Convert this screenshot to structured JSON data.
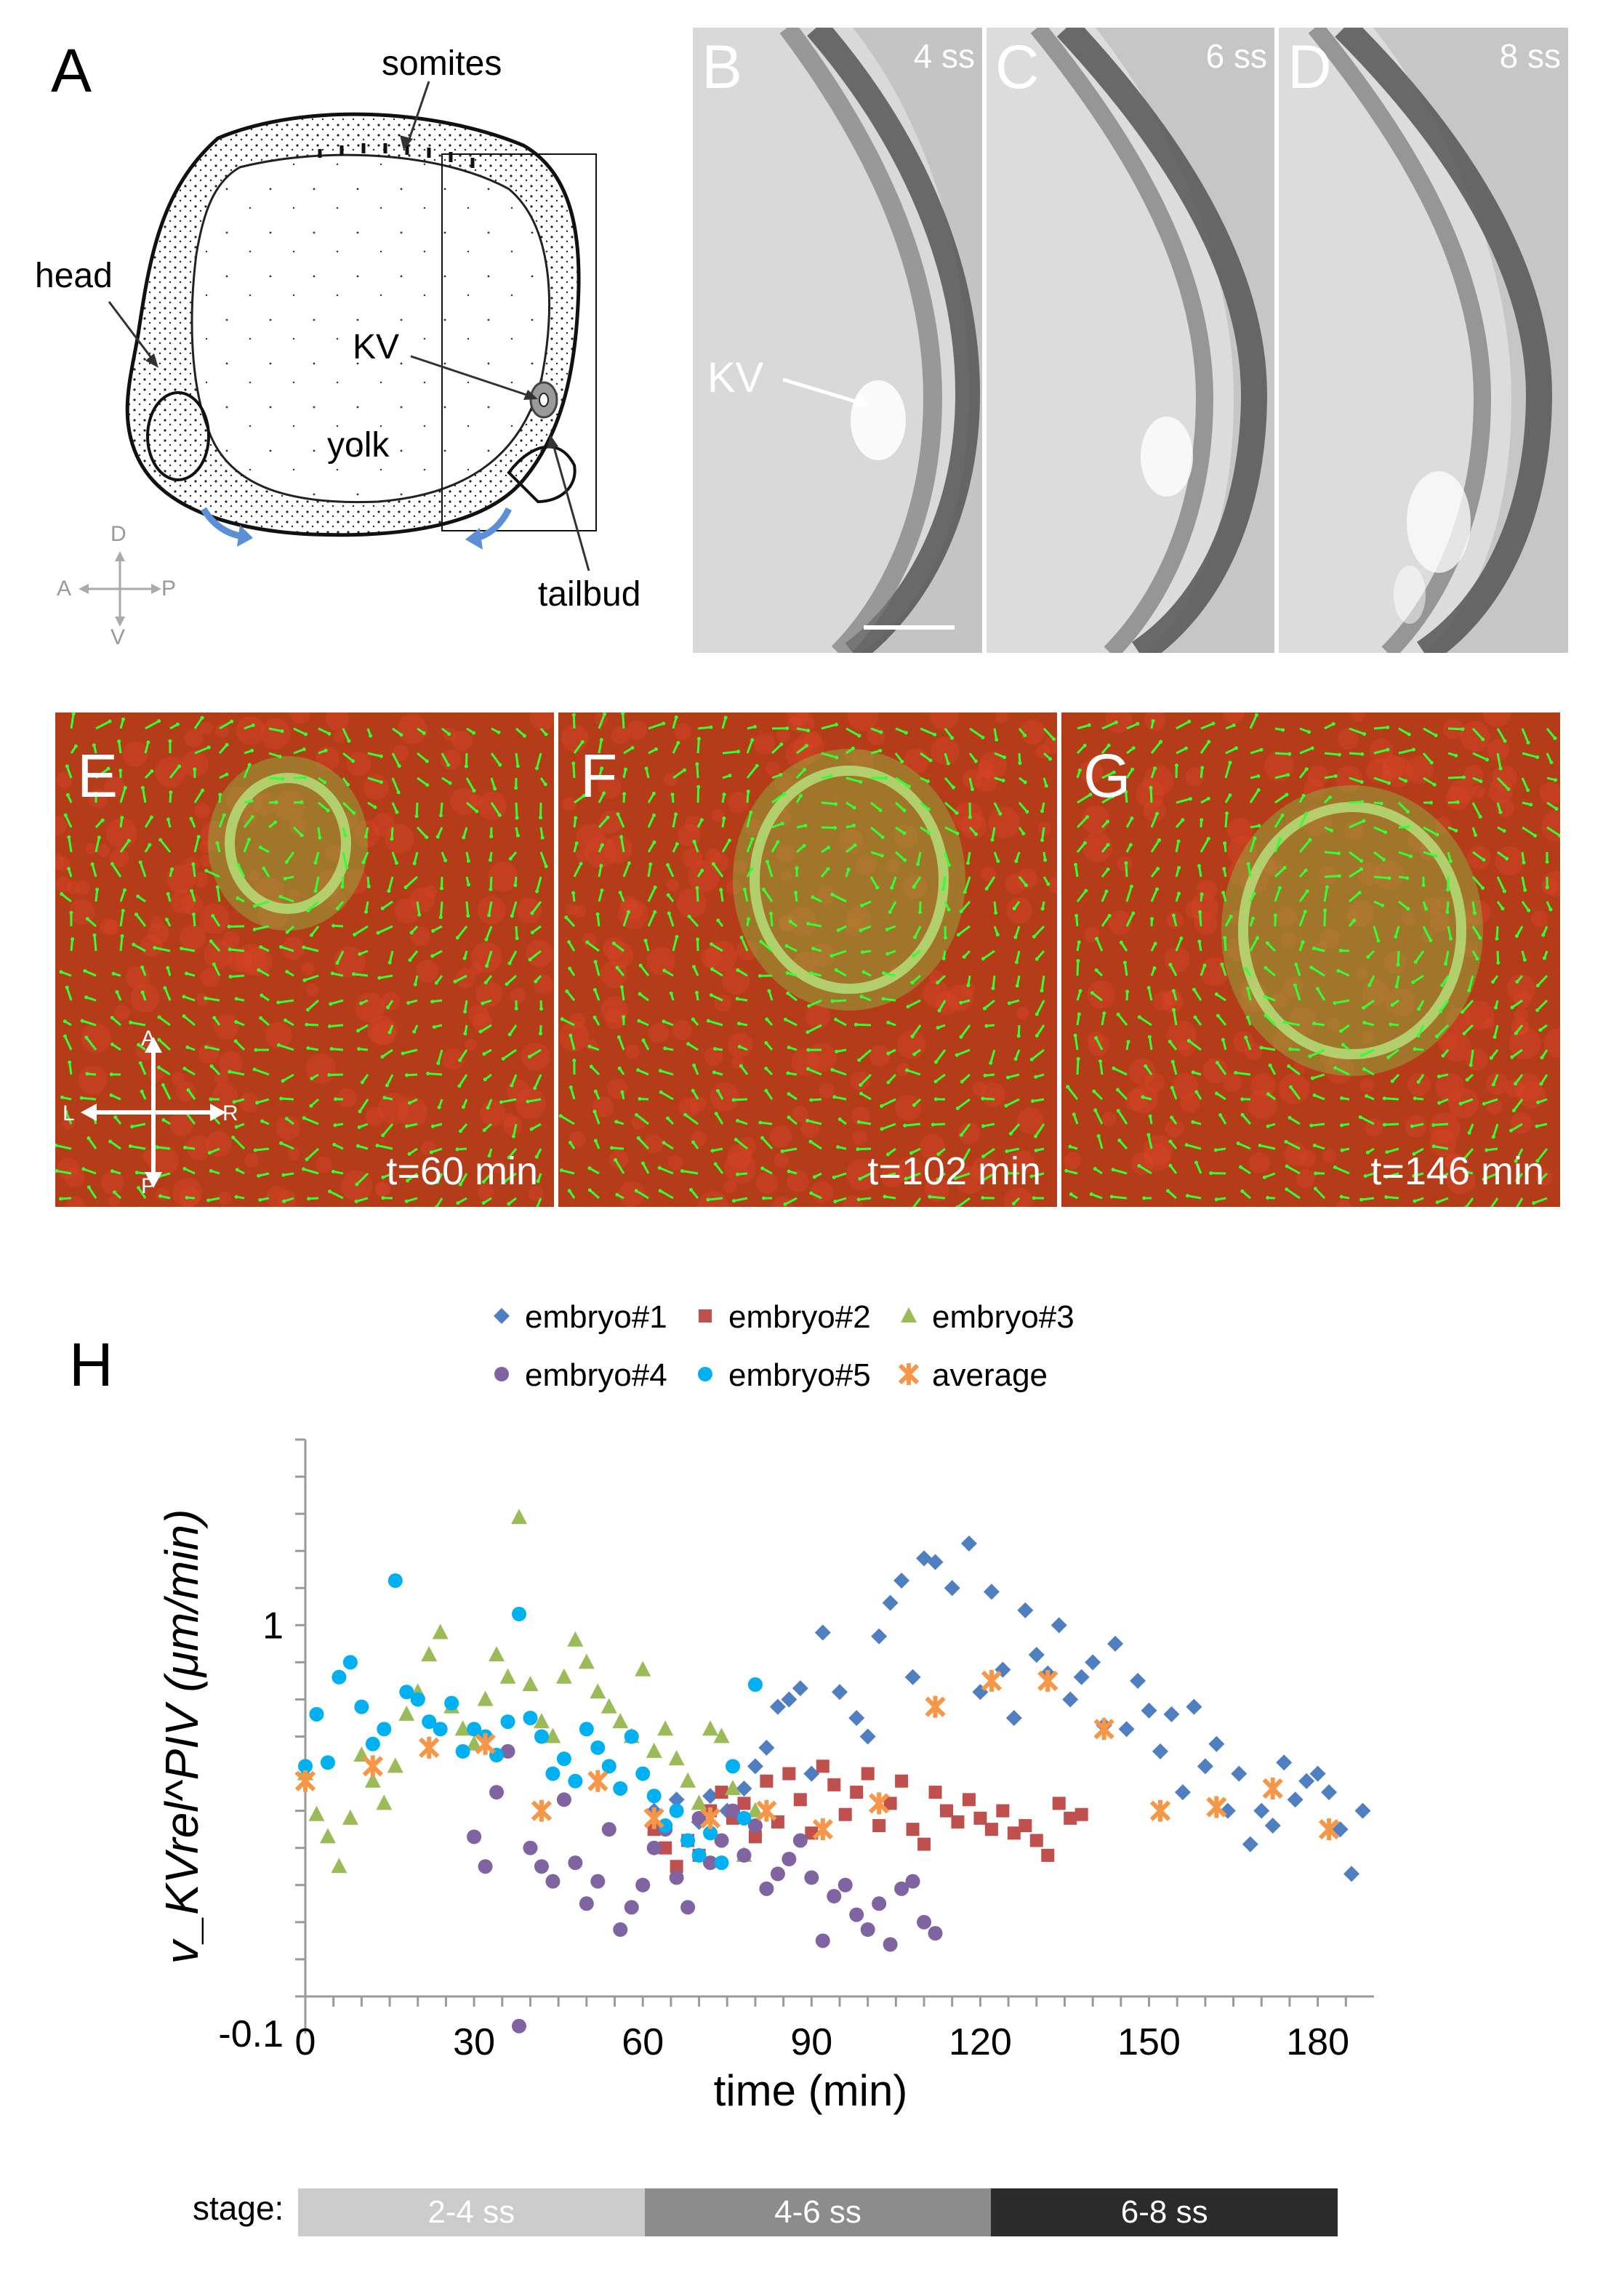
{
  "panel_a": {
    "label": "A",
    "annotations": {
      "somites": "somites",
      "head": "head",
      "kv": "KV",
      "yolk": "yolk",
      "tailbud": "tailbud"
    },
    "axes": {
      "d": "D",
      "v": "V",
      "a": "A",
      "p": "P"
    }
  },
  "panel_b": {
    "label": "B",
    "stage": "4 ss",
    "kv": "KV"
  },
  "panel_c": {
    "label": "C",
    "stage": "6 ss"
  },
  "panel_d": {
    "label": "D",
    "stage": "8 ss"
  },
  "panel_e": {
    "label": "E",
    "time": "t=60 min",
    "axes": {
      "a": "A",
      "p": "P",
      "l": "L",
      "r": "R"
    }
  },
  "panel_f": {
    "label": "F",
    "time": "t=102 min"
  },
  "panel_g": {
    "label": "G",
    "time": "t=146 min"
  },
  "panel_h": {
    "label": "H"
  },
  "stage_bar": {
    "title": "stage:",
    "segments": [
      {
        "label": "2-4 ss",
        "color": "#cccccc"
      },
      {
        "label": "4-6 ss",
        "color": "#8c8c8c"
      },
      {
        "label": "6-8 ss",
        "color": "#2b2b2b"
      }
    ]
  },
  "colors": {
    "piv_vectors": "#33ff33",
    "tissue": "#b43c19",
    "kv_glow": "#7fe04a"
  },
  "chart_data": {
    "type": "scatter",
    "xlabel": "time (min)",
    "ylabel": "v_KVrel^PIV (μm/min)",
    "xlim": [
      0,
      190
    ],
    "ylim": [
      -0.1,
      1.5
    ],
    "xticks": [
      0,
      30,
      60,
      90,
      120,
      150,
      180
    ],
    "yticks": [
      -0.1,
      1
    ],
    "ytick_labels": [
      "-0.1",
      "1"
    ],
    "series": [
      {
        "name": "embryo#1",
        "marker": "diamond",
        "color": "#4f7ec1",
        "points": [
          [
            62,
            0.5
          ],
          [
            66,
            0.53
          ],
          [
            70,
            0.47
          ],
          [
            72,
            0.54
          ],
          [
            75,
            0.5
          ],
          [
            78,
            0.56
          ],
          [
            80,
            0.62
          ],
          [
            82,
            0.67
          ],
          [
            84,
            0.78
          ],
          [
            86,
            0.8
          ],
          [
            88,
            0.83
          ],
          [
            90,
            0.6
          ],
          [
            92,
            0.98
          ],
          [
            95,
            0.82
          ],
          [
            98,
            0.75
          ],
          [
            100,
            0.7
          ],
          [
            102,
            0.97
          ],
          [
            104,
            1.06
          ],
          [
            106,
            1.12
          ],
          [
            108,
            0.86
          ],
          [
            110,
            1.18
          ],
          [
            112,
            1.17
          ],
          [
            115,
            1.1
          ],
          [
            118,
            1.22
          ],
          [
            120,
            0.82
          ],
          [
            122,
            1.09
          ],
          [
            124,
            0.88
          ],
          [
            126,
            0.75
          ],
          [
            128,
            1.04
          ],
          [
            130,
            0.92
          ],
          [
            132,
            0.87
          ],
          [
            134,
            1.0
          ],
          [
            136,
            0.8
          ],
          [
            138,
            0.86
          ],
          [
            140,
            0.9
          ],
          [
            142,
            0.73
          ],
          [
            144,
            0.95
          ],
          [
            146,
            0.72
          ],
          [
            148,
            0.85
          ],
          [
            150,
            0.77
          ],
          [
            152,
            0.66
          ],
          [
            154,
            0.76
          ],
          [
            156,
            0.55
          ],
          [
            158,
            0.78
          ],
          [
            160,
            0.62
          ],
          [
            162,
            0.68
          ],
          [
            164,
            0.5
          ],
          [
            166,
            0.6
          ],
          [
            168,
            0.41
          ],
          [
            170,
            0.5
          ],
          [
            172,
            0.46
          ],
          [
            174,
            0.63
          ],
          [
            176,
            0.53
          ],
          [
            178,
            0.58
          ],
          [
            180,
            0.6
          ],
          [
            182,
            0.55
          ],
          [
            184,
            0.45
          ],
          [
            186,
            0.33
          ],
          [
            188,
            0.5
          ]
        ]
      },
      {
        "name": "embryo#2",
        "marker": "square",
        "color": "#c0504d",
        "points": [
          [
            62,
            0.45
          ],
          [
            64,
            0.4
          ],
          [
            66,
            0.35
          ],
          [
            68,
            0.42
          ],
          [
            70,
            0.38
          ],
          [
            72,
            0.5
          ],
          [
            74,
            0.55
          ],
          [
            76,
            0.48
          ],
          [
            78,
            0.52
          ],
          [
            80,
            0.43
          ],
          [
            82,
            0.58
          ],
          [
            84,
            0.47
          ],
          [
            86,
            0.6
          ],
          [
            88,
            0.53
          ],
          [
            90,
            0.44
          ],
          [
            92,
            0.62
          ],
          [
            94,
            0.57
          ],
          [
            96,
            0.49
          ],
          [
            98,
            0.55
          ],
          [
            100,
            0.6
          ],
          [
            102,
            0.46
          ],
          [
            104,
            0.52
          ],
          [
            106,
            0.58
          ],
          [
            108,
            0.45
          ],
          [
            110,
            0.41
          ],
          [
            112,
            0.55
          ],
          [
            114,
            0.5
          ],
          [
            116,
            0.47
          ],
          [
            118,
            0.53
          ],
          [
            120,
            0.48
          ],
          [
            122,
            0.45
          ],
          [
            124,
            0.5
          ],
          [
            126,
            0.44
          ],
          [
            128,
            0.46
          ],
          [
            130,
            0.42
          ],
          [
            132,
            0.38
          ],
          [
            134,
            0.52
          ],
          [
            136,
            0.48
          ],
          [
            138,
            0.49
          ]
        ]
      },
      {
        "name": "embryo#3",
        "marker": "triangle",
        "color": "#9bbb59",
        "points": [
          [
            0,
            0.6
          ],
          [
            2,
            0.49
          ],
          [
            4,
            0.43
          ],
          [
            6,
            0.35
          ],
          [
            8,
            0.48
          ],
          [
            10,
            0.65
          ],
          [
            12,
            0.58
          ],
          [
            14,
            0.52
          ],
          [
            16,
            0.62
          ],
          [
            18,
            0.76
          ],
          [
            20,
            0.82
          ],
          [
            22,
            0.92
          ],
          [
            24,
            0.98
          ],
          [
            26,
            0.78
          ],
          [
            28,
            0.72
          ],
          [
            30,
            0.68
          ],
          [
            32,
            0.8
          ],
          [
            34,
            0.92
          ],
          [
            36,
            0.86
          ],
          [
            38,
            1.29
          ],
          [
            40,
            0.84
          ],
          [
            42,
            0.74
          ],
          [
            44,
            0.7
          ],
          [
            46,
            0.86
          ],
          [
            48,
            0.96
          ],
          [
            50,
            0.9
          ],
          [
            52,
            0.82
          ],
          [
            54,
            0.78
          ],
          [
            56,
            0.74
          ],
          [
            58,
            0.7
          ],
          [
            60,
            0.88
          ],
          [
            62,
            0.66
          ],
          [
            64,
            0.72
          ],
          [
            66,
            0.64
          ],
          [
            68,
            0.58
          ],
          [
            70,
            0.52
          ],
          [
            72,
            0.72
          ],
          [
            74,
            0.7
          ],
          [
            76,
            0.56
          ],
          [
            78,
            0.38
          ],
          [
            80,
            0.5
          ]
        ]
      },
      {
        "name": "embryo#4",
        "marker": "circle",
        "color": "#8064a2",
        "points": [
          [
            30,
            0.43
          ],
          [
            32,
            0.35
          ],
          [
            34,
            0.55
          ],
          [
            36,
            0.66
          ],
          [
            38,
            -0.08
          ],
          [
            40,
            0.4
          ],
          [
            42,
            0.35
          ],
          [
            44,
            0.31
          ],
          [
            46,
            0.53
          ],
          [
            48,
            0.36
          ],
          [
            50,
            0.25
          ],
          [
            52,
            0.31
          ],
          [
            54,
            0.45
          ],
          [
            56,
            0.18
          ],
          [
            58,
            0.24
          ],
          [
            60,
            0.3
          ],
          [
            62,
            0.4
          ],
          [
            64,
            0.45
          ],
          [
            66,
            0.32
          ],
          [
            68,
            0.24
          ],
          [
            70,
            0.48
          ],
          [
            72,
            0.36
          ],
          [
            74,
            0.42
          ],
          [
            76,
            0.5
          ],
          [
            78,
            0.38
          ],
          [
            80,
            0.46
          ],
          [
            82,
            0.29
          ],
          [
            84,
            0.33
          ],
          [
            86,
            0.37
          ],
          [
            88,
            0.42
          ],
          [
            90,
            0.32
          ],
          [
            92,
            0.15
          ],
          [
            94,
            0.27
          ],
          [
            96,
            0.3
          ],
          [
            98,
            0.22
          ],
          [
            100,
            0.18
          ],
          [
            102,
            0.25
          ],
          [
            104,
            0.14
          ],
          [
            106,
            0.29
          ],
          [
            108,
            0.31
          ],
          [
            110,
            0.2
          ],
          [
            112,
            0.17
          ]
        ]
      },
      {
        "name": "embryo#5",
        "marker": "circle",
        "color": "#00b0f0",
        "points": [
          [
            0,
            0.62
          ],
          [
            2,
            0.76
          ],
          [
            4,
            0.63
          ],
          [
            6,
            0.86
          ],
          [
            8,
            0.9
          ],
          [
            10,
            0.78
          ],
          [
            12,
            0.68
          ],
          [
            14,
            0.72
          ],
          [
            16,
            1.12
          ],
          [
            18,
            0.82
          ],
          [
            20,
            0.8
          ],
          [
            22,
            0.74
          ],
          [
            24,
            0.72
          ],
          [
            26,
            0.79
          ],
          [
            28,
            0.66
          ],
          [
            30,
            0.72
          ],
          [
            32,
            0.7
          ],
          [
            34,
            0.65
          ],
          [
            36,
            0.74
          ],
          [
            38,
            1.03
          ],
          [
            40,
            0.75
          ],
          [
            42,
            0.7
          ],
          [
            44,
            0.6
          ],
          [
            46,
            0.64
          ],
          [
            48,
            0.58
          ],
          [
            50,
            0.72
          ],
          [
            52,
            0.67
          ],
          [
            54,
            0.62
          ],
          [
            56,
            0.56
          ],
          [
            58,
            0.7
          ],
          [
            60,
            0.6
          ],
          [
            62,
            0.54
          ],
          [
            64,
            0.46
          ],
          [
            66,
            0.5
          ],
          [
            68,
            0.42
          ],
          [
            70,
            0.38
          ],
          [
            72,
            0.44
          ],
          [
            74,
            0.36
          ],
          [
            76,
            0.62
          ],
          [
            78,
            0.48
          ],
          [
            80,
            0.84
          ]
        ]
      },
      {
        "name": "average",
        "marker": "star",
        "color": "#f79646",
        "points": [
          [
            0,
            0.58
          ],
          [
            12,
            0.62
          ],
          [
            22,
            0.67
          ],
          [
            32,
            0.68
          ],
          [
            42,
            0.5
          ],
          [
            52,
            0.58
          ],
          [
            62,
            0.48
          ],
          [
            72,
            0.48
          ],
          [
            82,
            0.5
          ],
          [
            92,
            0.45
          ],
          [
            102,
            0.52
          ],
          [
            112,
            0.78
          ],
          [
            122,
            0.85
          ],
          [
            132,
            0.85
          ],
          [
            142,
            0.72
          ],
          [
            152,
            0.5
          ],
          [
            162,
            0.51
          ],
          [
            172,
            0.56
          ],
          [
            182,
            0.45
          ]
        ]
      }
    ]
  }
}
